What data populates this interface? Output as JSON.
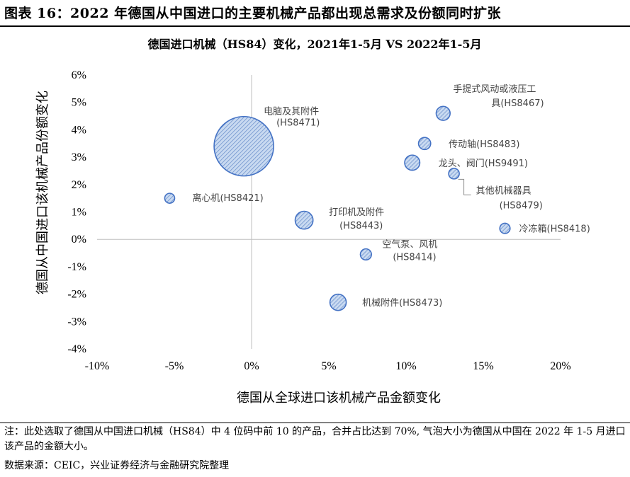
{
  "figure": {
    "title": "图表 16：2022 年德国从中国进口的主要机械产品都出现总需求及份额同时扩张",
    "note": "注：此处选取了德国从中国进口机械（HS84）中 4 位码中前 10 的产品，合并占比达到 70%, 气泡大小为德国从中国在 2022 年 1-5 月进口该产品的金额大小。",
    "source": "数据来源：CEIC，兴业证券经济与金融研究院整理"
  },
  "chart_data": {
    "type": "scatter",
    "title": "德国进口机械（HS84）变化，2021年1-5月 VS 2022年1-5月",
    "xlabel": "德国从全球进口该机械产品金额变化",
    "ylabel": "德国从中国进口该机械产品份额变化",
    "xlim": [
      -0.1,
      0.2
    ],
    "ylim": [
      -0.04,
      0.06
    ],
    "x_ticks": [
      "-10%",
      "-5%",
      "0%",
      "5%",
      "10%",
      "15%",
      "20%"
    ],
    "y_ticks": [
      "6%",
      "5%",
      "4%",
      "3%",
      "2%",
      "1%",
      "0%",
      "-1%",
      "-2%",
      "-3%",
      "-4%"
    ],
    "grid": false,
    "bubble_color": "#a9c4e8",
    "bubble_edge": "#4472c4",
    "points": [
      {
        "label": [
          "电脑及其附件",
          "(HS8471)"
        ],
        "x": -0.005,
        "y": 0.034,
        "size": 100
      },
      {
        "label": [
          "手提式风动或液压工",
          "具(HS8467)"
        ],
        "x": 0.124,
        "y": 0.046,
        "size": 5.5
      },
      {
        "label": [
          "传动轴(HS8483)"
        ],
        "x": 0.112,
        "y": 0.035,
        "size": 4.2
      },
      {
        "label": [
          "龙头、阀门(HS9491)"
        ],
        "x": 0.104,
        "y": 0.028,
        "size": 6.5
      },
      {
        "label": [
          "其他机械器具",
          "(HS8479)"
        ],
        "x": 0.131,
        "y": 0.024,
        "size": 3.2
      },
      {
        "label": [
          "离心机(HS8421)"
        ],
        "x": -0.053,
        "y": 0.015,
        "size": 2.8
      },
      {
        "label": [
          "打印机及附件",
          "(HS8443)"
        ],
        "x": 0.034,
        "y": 0.007,
        "size": 9.0
      },
      {
        "label": [
          "冷冻箱(HS8418)"
        ],
        "x": 0.164,
        "y": 0.004,
        "size": 3.0
      },
      {
        "label": [
          "空气泵、风机",
          "(HS8414)"
        ],
        "x": 0.074,
        "y": -0.0055,
        "size": 3.5
      },
      {
        "label": [
          "机械附件(HS8473)"
        ],
        "x": 0.056,
        "y": -0.023,
        "size": 7.5
      }
    ]
  }
}
